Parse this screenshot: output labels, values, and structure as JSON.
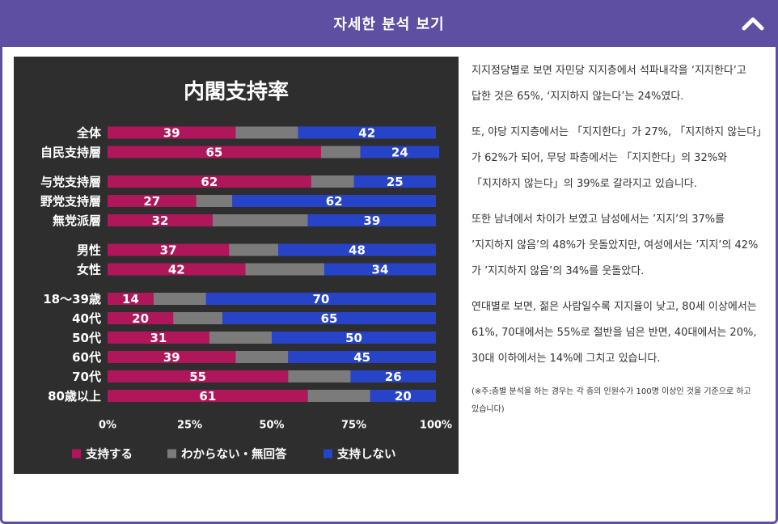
{
  "header": {
    "title": "자세한 분석 보기",
    "toggle_icon": "chevron-up-icon"
  },
  "colors": {
    "support": "#b0175a",
    "unknown": "#7b7b7b",
    "oppose": "#2744c8",
    "background": "#2e2e2e",
    "header": "#5e4fa2"
  },
  "chart_data": {
    "type": "bar",
    "orientation": "horizontal",
    "stacked": true,
    "title": "内閣支持率",
    "categories": [
      "全体",
      "自民支持層",
      "与党支持層",
      "野党支持層",
      "無党派層",
      "男性",
      "女性",
      "18〜39歳",
      "40代",
      "50代",
      "60代",
      "70代",
      "80歳以上"
    ],
    "group_breaks_after": [
      1,
      4,
      6
    ],
    "series": [
      {
        "name": "支持する",
        "values": [
          39,
          65,
          62,
          27,
          32,
          37,
          42,
          14,
          20,
          31,
          39,
          55,
          61
        ]
      },
      {
        "name": "わからない・無回答",
        "values": [
          19,
          12,
          13,
          11,
          29,
          15,
          24,
          16,
          15,
          19,
          16,
          19,
          19
        ]
      },
      {
        "name": "支持しない",
        "values": [
          42,
          24,
          25,
          62,
          39,
          48,
          34,
          70,
          65,
          50,
          45,
          26,
          20
        ]
      }
    ],
    "labeled_series": [
      0,
      2
    ],
    "x_ticks": [
      "0%",
      "25%",
      "50%",
      "75%",
      "100%"
    ],
    "xlim": [
      0,
      100
    ],
    "legend": "bottom"
  },
  "analysis": {
    "paragraphs": [
      "지지정당별로 보면 자민당 지지층에서 석파내각을 ‘지지한다’고 답한 것은 65%, ‘지지하지 않는다’는 24%였다.",
      "또, 야당 지지층에서는 「지지한다」가 27%, 「지지하지 않는다」가 62%가 되어, 무당 파층에서는 「지지한다」의 32%와 「지지하지 않는다」의 39%로 갈라지고 있습니다.",
      "또한 남녀에서 차이가 보였고 남성에서는 ’지지’의 37%를 ’지지하지 않음’의 48%가 웃돌았지만, 여성에서는 ’지지’의 42%가 ’지지하지 않음’의 34%를 웃돌았다.",
      "연대별로 보면, 젊은 사람일수록 지지율이 낮고, 80세 이상에서는 61%, 70대에서는 55%로 절반을 넘은 반면, 40대에서는 20%, 30대 이하에서는 14%에 그치고 있습니다."
    ],
    "note": "(※주:층별 분석을 하는 경우는 각 층의 인원수가 100명 이상인 것을 기준으로 하고 있습니다)"
  }
}
